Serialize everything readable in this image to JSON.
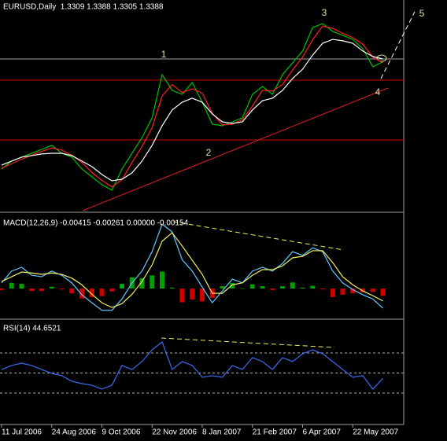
{
  "chart_data": [
    {
      "type": "line",
      "title": "EURUSD,Daily  1.3309 1.3388 1.3305 1.3388",
      "ylim": [
        1.2355,
        1.3805
      ],
      "annotations": [
        "1",
        "2",
        "3",
        "4",
        "5"
      ],
      "annotation_color": "#e8e0a0",
      "series": [
        {
          "color": "#00c000",
          "values": [
            1.2644,
            1.2699,
            1.2726,
            1.2753,
            1.278,
            1.2808,
            1.2753,
            1.2726,
            1.2644,
            1.259,
            1.2535,
            1.2497,
            1.2644,
            1.2753,
            1.2862,
            1.2998,
            1.3298,
            1.3189,
            1.3162,
            1.3244,
            1.3107,
            1.2955,
            1.2944,
            1.2971,
            1.2998,
            1.3162,
            1.3216,
            1.3162,
            1.3298,
            1.338,
            1.3462,
            1.3625,
            1.3652,
            1.3598,
            1.3571,
            1.3543,
            1.3478,
            1.3353,
            1.3388
          ]
        },
        {
          "color": "#ff2020",
          "values": [
            1.265,
            1.268,
            1.2712,
            1.274,
            1.2766,
            1.279,
            1.2775,
            1.274,
            1.269,
            1.262,
            1.2565,
            1.252,
            1.257,
            1.269,
            1.28,
            1.293,
            1.315,
            1.323,
            1.3175,
            1.32,
            1.317,
            1.303,
            1.295,
            1.2955,
            1.2985,
            1.308,
            1.319,
            1.3185,
            1.323,
            1.333,
            1.342,
            1.354,
            1.3635,
            1.362,
            1.3585,
            1.3555,
            1.351,
            1.342,
            1.338
          ]
        },
        {
          "color": "#ffffff",
          "values": [
            1.2671,
            1.2699,
            1.2726,
            1.2737,
            1.2748,
            1.2753,
            1.2753,
            1.2737,
            1.2699,
            1.2661,
            1.2606,
            1.2562,
            1.2573,
            1.2617,
            1.2699,
            1.2808,
            1.2944,
            1.3053,
            1.3107,
            1.3135,
            1.3107,
            1.3026,
            1.2971,
            1.296,
            1.2971,
            1.3053,
            1.3118,
            1.3135,
            1.3189,
            1.3271,
            1.3336,
            1.3434,
            1.3516,
            1.3543,
            1.3533,
            1.3516,
            1.3462,
            1.3424,
            1.3407
          ]
        }
      ]
    },
    {
      "type": "bar",
      "title": "MACD(12,26,9) -0.00415 -0.00261 0.00000 -0.00154",
      "ylim": [
        -0.0063,
        0.0158
      ],
      "series": [
        {
          "kind": "bar",
          "color": "#00a000",
          "negative_color": "#d00000",
          "values": [
            -0.0003,
            0.0012,
            0.001,
            -0.0005,
            -0.0005,
            0.0004,
            -0.0002,
            -0.001,
            -0.0021,
            -0.0018,
            -0.0016,
            -0.0006,
            0.001,
            0.0024,
            0.0022,
            0.0028,
            0.0036,
            0.0002,
            -0.0029,
            -0.0023,
            -0.0027,
            -0.002,
            0.0005,
            0.0012,
            0.0,
            0.0009,
            0.0005,
            -0.0003,
            0.0005,
            0.0013,
            0.0002,
            0.0006,
            -0.0002,
            -0.0018,
            -0.0013,
            -0.001,
            -0.0008,
            -0.0007,
            -0.00154
          ]
        },
        {
          "kind": "line",
          "color": "#60c8ff",
          "values": [
            0.0012,
            0.0037,
            0.0045,
            0.0028,
            0.0025,
            0.0037,
            0.0028,
            0.0012,
            -0.0013,
            -0.003,
            -0.0046,
            -0.0046,
            -0.0022,
            0.0012,
            0.0037,
            0.0078,
            0.0136,
            0.012,
            0.0061,
            0.0037,
            0.0003,
            -0.003,
            -0.0005,
            0.002,
            0.0012,
            0.0037,
            0.0045,
            0.0037,
            0.0053,
            0.0078,
            0.007,
            0.0086,
            0.0078,
            0.0037,
            0.0012,
            -0.0002,
            -0.0013,
            -0.0022,
            -0.00415
          ]
        },
        {
          "kind": "line",
          "color": "#f0f060",
          "values": [
            0.0015,
            0.0025,
            0.0035,
            0.0033,
            0.003,
            0.0033,
            0.003,
            0.0022,
            0.0008,
            -0.0012,
            -0.003,
            -0.004,
            -0.0032,
            -0.0012,
            0.0015,
            0.005,
            0.01,
            0.0118,
            0.009,
            0.006,
            0.003,
            -0.001,
            -0.001,
            0.0008,
            0.0012,
            0.0028,
            0.004,
            0.004,
            0.0048,
            0.0065,
            0.0068,
            0.008,
            0.008,
            0.0055,
            0.0025,
            0.0008,
            -0.0005,
            -0.0015,
            -0.00261
          ]
        }
      ]
    },
    {
      "type": "line",
      "title": "RSI(14) 44.6521",
      "ylim": [
        0,
        100
      ],
      "levels": [
        30,
        50,
        70
      ],
      "level_color": "#b0b0b0",
      "categories": [
        "11 Jul 2006",
        null,
        null,
        null,
        null,
        "24 Aug 2006",
        null,
        null,
        null,
        null,
        "9 Oct 2006",
        null,
        null,
        null,
        null,
        "22 Nov 2006",
        null,
        null,
        null,
        null,
        "8 Jan 2007",
        null,
        null,
        null,
        null,
        "21 Feb 2007",
        null,
        null,
        null,
        null,
        "6 Apr 2007",
        null,
        null,
        null,
        null,
        "22 May 2007",
        null,
        null,
        null
      ],
      "series": [
        {
          "color": "#3c6cf0",
          "values": [
            53.5,
            57.5,
            59.8,
            57.5,
            53.5,
            49.6,
            47.3,
            41.8,
            39.4,
            37.8,
            33.9,
            37.8,
            57.5,
            53.5,
            61.4,
            73.1,
            81.0,
            53.5,
            61.4,
            57.5,
            45.7,
            47.3,
            45.7,
            57.5,
            53.5,
            65.3,
            61.4,
            53.5,
            65.3,
            61.4,
            69.2,
            73.1,
            69.2,
            61.4,
            53.5,
            45.7,
            47.3,
            33.9,
            44.6521
          ]
        }
      ]
    }
  ]
}
